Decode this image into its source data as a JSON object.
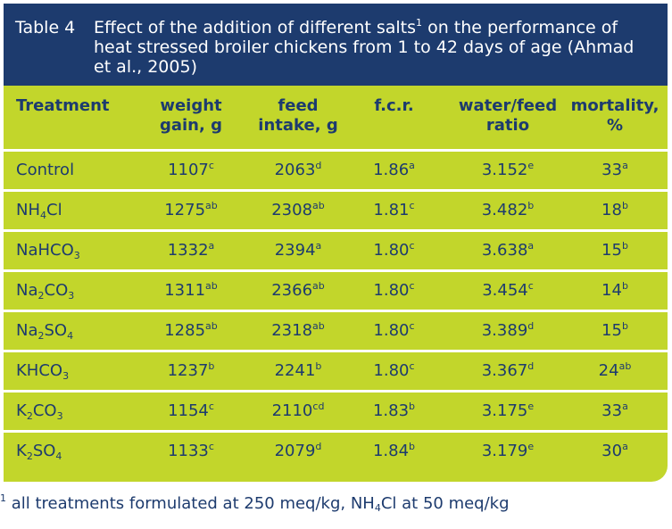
{
  "caption": {
    "label": "Table 4",
    "text_before": "Effect of the addition of different salts",
    "footnote_ref": "1",
    "text_after": " on the performance of heat stressed broiler chickens from 1 to 42 days of age (Ahmad et al., 2005)"
  },
  "colors": {
    "header_bg": "#1d3b6e",
    "table_bg": "#c2d62b",
    "text": "#1d3b6e",
    "divider": "#ffffff"
  },
  "headers": {
    "treatment": "Treatment",
    "weight_gain_1": "weight",
    "weight_gain_2": "gain, g",
    "feed_intake_1": "feed",
    "feed_intake_2": "intake, g",
    "fcr": "f.c.r.",
    "water_feed_1": "water/feed",
    "water_feed_2": "ratio",
    "mortality_1": "mortality,",
    "mortality_2": "%"
  },
  "rows": [
    {
      "t_base": "Control",
      "t_sub1": "",
      "t_mid": "",
      "t_sub2": "",
      "wg": "1107",
      "wg_s": "c",
      "fi": "2063",
      "fi_s": "d",
      "fcr": "1.86",
      "fcr_s": "a",
      "wf": "3.152",
      "wf_s": "e",
      "m": "33",
      "m_s": "a"
    },
    {
      "t_base": "NH",
      "t_sub1": "4",
      "t_mid": "Cl",
      "t_sub2": "",
      "wg": "1275",
      "wg_s": "ab",
      "fi": "2308",
      "fi_s": "ab",
      "fcr": "1.81",
      "fcr_s": "c",
      "wf": "3.482",
      "wf_s": "b",
      "m": "18",
      "m_s": "b"
    },
    {
      "t_base": "NaHCO",
      "t_sub1": "3",
      "t_mid": "",
      "t_sub2": "",
      "wg": "1332",
      "wg_s": "a",
      "fi": "2394",
      "fi_s": "a",
      "fcr": "1.80",
      "fcr_s": "c",
      "wf": "3.638",
      "wf_s": "a",
      "m": "15",
      "m_s": "b"
    },
    {
      "t_base": "Na",
      "t_sub1": "2",
      "t_mid": "CO",
      "t_sub2": "3",
      "wg": "1311",
      "wg_s": "ab",
      "fi": "2366",
      "fi_s": "ab",
      "fcr": "1.80",
      "fcr_s": "c",
      "wf": "3.454",
      "wf_s": "c",
      "m": "14",
      "m_s": "b"
    },
    {
      "t_base": "Na",
      "t_sub1": "2",
      "t_mid": "SO",
      "t_sub2": "4",
      "wg": "1285",
      "wg_s": "ab",
      "fi": "2318",
      "fi_s": "ab",
      "fcr": "1.80",
      "fcr_s": "c",
      "wf": "3.389",
      "wf_s": "d",
      "m": "15",
      "m_s": "b"
    },
    {
      "t_base": "KHCO",
      "t_sub1": "3",
      "t_mid": "",
      "t_sub2": "",
      "wg": "1237",
      "wg_s": "b",
      "fi": "2241",
      "fi_s": "b",
      "fcr": "1.80",
      "fcr_s": "c",
      "wf": "3.367",
      "wf_s": "d",
      "m": "24",
      "m_s": "ab"
    },
    {
      "t_base": "K",
      "t_sub1": "2",
      "t_mid": "CO",
      "t_sub2": "3",
      "wg": "1154",
      "wg_s": "c",
      "fi": "2110",
      "fi_s": "cd",
      "fcr": "1.83",
      "fcr_s": "b",
      "wf": "3.175",
      "wf_s": "e",
      "m": "33",
      "m_s": "a"
    },
    {
      "t_base": "K",
      "t_sub1": "2",
      "t_mid": "SO",
      "t_sub2": "4",
      "wg": "1133",
      "wg_s": "c",
      "fi": "2079",
      "fi_s": "d",
      "fcr": "1.84",
      "fcr_s": "b",
      "wf": "3.179",
      "wf_s": "e",
      "m": "30",
      "m_s": "a"
    }
  ],
  "footnote": {
    "ref": "1",
    "text_before": " all treatments formulated at 250 meq/kg, NH",
    "sub": "4",
    "text_after": "Cl at 50 meq/kg"
  }
}
